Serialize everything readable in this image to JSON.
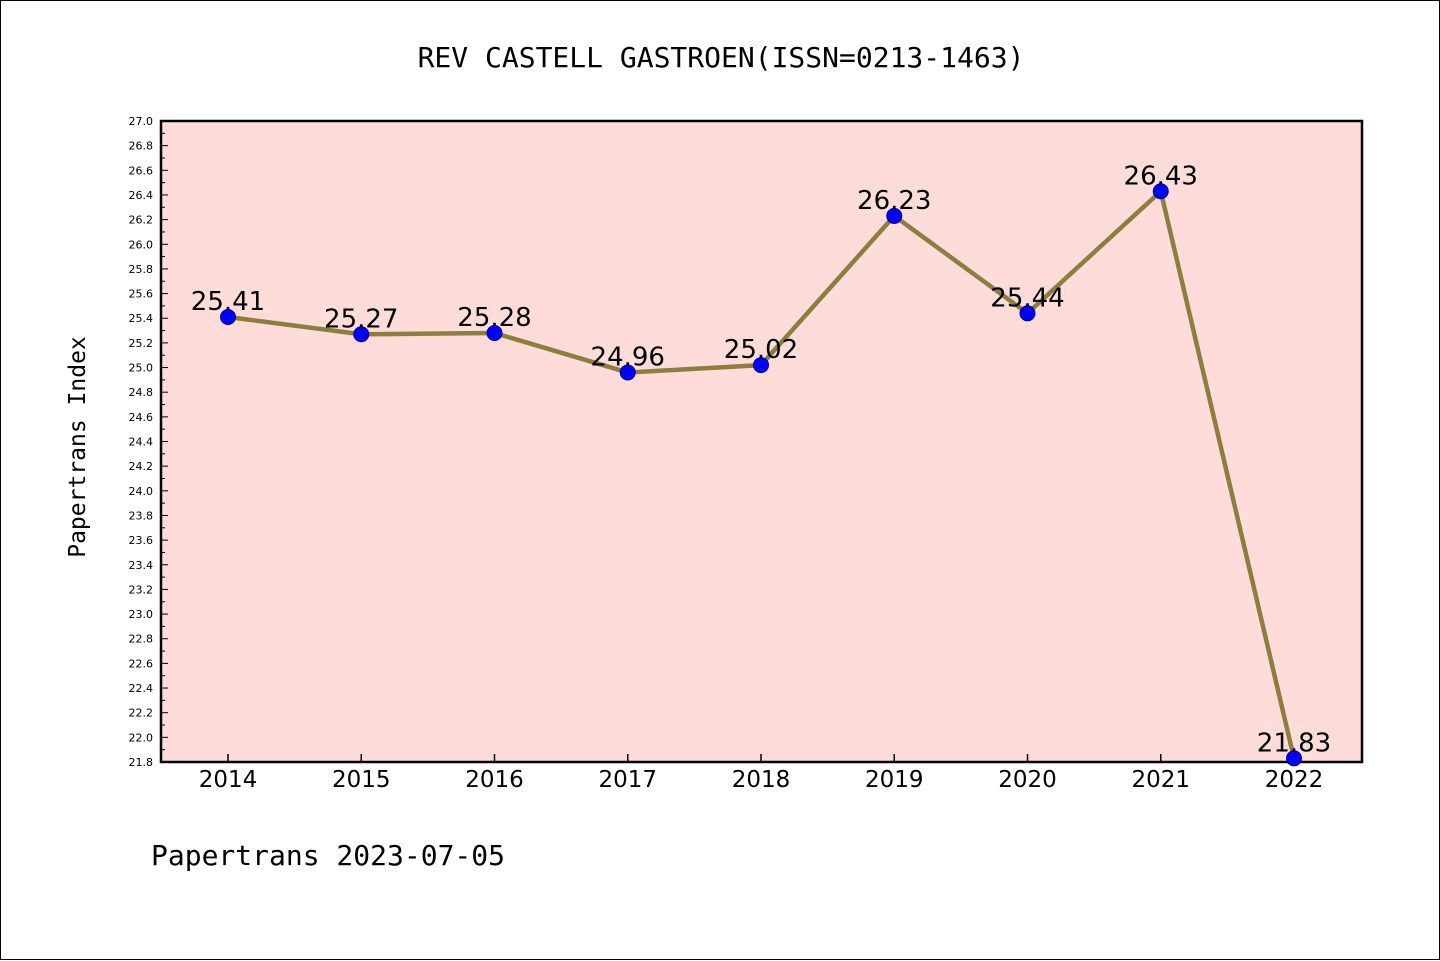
{
  "chart_data": {
    "type": "line",
    "title": "REV CASTELL GASTROEN(ISSN=0213-1463)",
    "xlabel": "",
    "ylabel": "Papertrans Index",
    "categories": [
      "2014",
      "2015",
      "2016",
      "2017",
      "2018",
      "2019",
      "2020",
      "2021",
      "2022"
    ],
    "series": [
      {
        "values": [
          25.41,
          25.27,
          25.28,
          24.96,
          25.02,
          26.23,
          25.44,
          26.43,
          21.83
        ],
        "labels": [
          "25.41",
          "25.27",
          "25.28",
          "24.96",
          "25.02",
          "26.23",
          "25.44",
          "26.43",
          "21.83"
        ]
      }
    ],
    "ylim": [
      21.8,
      27.0
    ],
    "yticks": [
      "21.8",
      "22.0",
      "22.2",
      "22.4",
      "22.6",
      "22.8",
      "23.0",
      "23.2",
      "23.4",
      "23.6",
      "23.8",
      "24.0",
      "24.2",
      "24.4",
      "24.6",
      "24.8",
      "25.0",
      "25.2",
      "25.4",
      "25.6",
      "25.8",
      "26.0",
      "26.2",
      "26.4",
      "26.6",
      "26.8",
      "27.0"
    ],
    "grid": false,
    "legend": "none",
    "colors": {
      "plot_background": "#fddcda",
      "line": "#8c7e3c",
      "marker": "#0000ff"
    }
  },
  "footer": "Papertrans 2023-07-05"
}
